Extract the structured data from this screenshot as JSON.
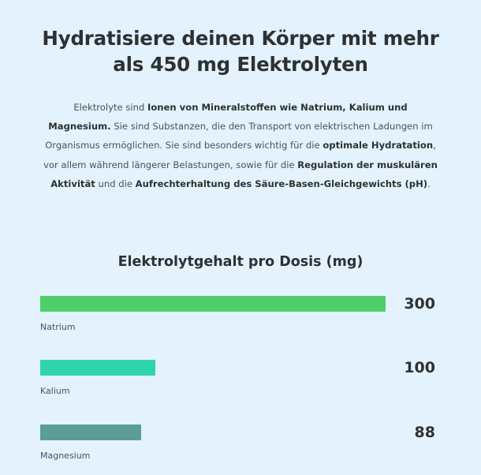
{
  "heading": {
    "line1": "Hydratisiere deinen Körper mit mehr",
    "line2": "als 450 mg Elektrolyten"
  },
  "intro": {
    "s1": "Elektrolyte sind ",
    "b1": "Ionen von Mineralstoffen wie Natrium, Kalium und Magnesium.",
    "s2": " Sie sind Substanzen, die den Transport von elektrischen Ladungen im Organismus ermöglichen. Sie sind besonders wichtig für die ",
    "b2": "optimale Hydratation",
    "s3": ", vor allem während längerer Belastungen, sowie für die ",
    "b3": "Regulation der muskulären Aktivität",
    "s4": " und die ",
    "b4": "Aufrechterhaltung des Säure-Basen-Gleichgewichts (pH)",
    "s5": "."
  },
  "chart_data": {
    "type": "bar",
    "title": "Elektrolytgehalt pro Dosis (mg)",
    "categories": [
      "Natrium",
      "Kalium",
      "Magnesium"
    ],
    "values": [
      300,
      100,
      88
    ],
    "value_labels": [
      "300",
      "100",
      "88"
    ],
    "colors": [
      "#4ecf6a",
      "#2fd4ac",
      "#5b9e96"
    ],
    "xlim": [
      0,
      300
    ]
  }
}
